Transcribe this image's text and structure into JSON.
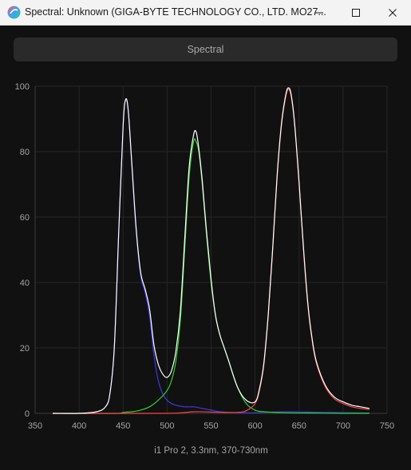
{
  "window": {
    "title": "Spectral: Unknown (GIGA-BYTE TECHNOLOGY CO., LTD. MO27...",
    "app_icon": "colorimeter-app-icon",
    "controls": [
      "minimize-icon",
      "maximize-icon",
      "close-icon"
    ]
  },
  "toolbar": {
    "spectral_label": "Spectral"
  },
  "chart_data": {
    "type": "line",
    "title": "",
    "xlabel": "i1 Pro 2, 3.3nm, 370-730nm",
    "ylabel": "",
    "xlim": [
      350,
      750
    ],
    "ylim": [
      0,
      100
    ],
    "x_ticks": [
      350,
      400,
      450,
      500,
      550,
      600,
      650,
      700,
      750
    ],
    "y_ticks": [
      0,
      20,
      40,
      60,
      80,
      100
    ],
    "grid": true,
    "legend": "none",
    "series": [
      {
        "color": "#3a3ae6",
        "x": [
          370,
          400,
          420,
          430,
          435,
          440,
          445,
          450,
          453,
          456,
          460,
          465,
          470,
          475,
          480,
          485,
          490,
          495,
          500,
          505,
          510,
          520,
          530,
          540,
          550,
          560,
          580,
          600,
          620,
          640,
          660,
          680,
          700,
          730
        ],
        "y": [
          0,
          0,
          0.5,
          2,
          6,
          20,
          55,
          88,
          96,
          92,
          75,
          55,
          42,
          37,
          30,
          18,
          10,
          6,
          4,
          3,
          2.5,
          2,
          2,
          1.5,
          1,
          0.5,
          0.2,
          0.2,
          0.4,
          0.5,
          0.4,
          0.3,
          0.2,
          0.1
        ]
      },
      {
        "color": "#2fd42f",
        "x": [
          370,
          440,
          450,
          460,
          470,
          480,
          490,
          500,
          505,
          510,
          515,
          520,
          525,
          530,
          533,
          536,
          540,
          545,
          550,
          555,
          560,
          565,
          570,
          580,
          590,
          600,
          610,
          630,
          660,
          700,
          730
        ],
        "y": [
          0,
          0,
          0.3,
          0.5,
          1,
          2,
          4,
          7,
          10,
          16,
          28,
          50,
          72,
          83,
          83,
          80,
          70,
          54,
          40,
          30,
          24,
          20,
          16,
          8,
          3,
          1,
          0.5,
          0.2,
          0.1,
          0,
          0
        ]
      },
      {
        "color": "#ff4444",
        "x": [
          370,
          500,
          530,
          560,
          580,
          590,
          600,
          605,
          610,
          615,
          620,
          625,
          630,
          635,
          638,
          641,
          645,
          650,
          655,
          660,
          665,
          670,
          680,
          690,
          700,
          710,
          720,
          730
        ],
        "y": [
          0,
          0,
          0.5,
          0.3,
          0.3,
          0.8,
          3,
          7,
          15,
          30,
          50,
          72,
          88,
          97,
          99,
          97,
          88,
          70,
          50,
          33,
          22,
          15,
          8,
          4.5,
          3,
          2,
          1.5,
          1.2
        ]
      },
      {
        "color": "#ffffff",
        "x": [
          370,
          400,
          420,
          430,
          435,
          440,
          445,
          450,
          453,
          456,
          460,
          465,
          470,
          475,
          480,
          485,
          490,
          495,
          500,
          505,
          510,
          515,
          520,
          525,
          530,
          533,
          536,
          540,
          545,
          550,
          555,
          560,
          565,
          570,
          580,
          590,
          600,
          605,
          610,
          615,
          620,
          625,
          630,
          635,
          638,
          641,
          645,
          650,
          655,
          660,
          665,
          670,
          680,
          690,
          700,
          710,
          720,
          730
        ],
        "y": [
          0,
          0,
          0.5,
          2,
          6,
          20,
          55,
          88,
          96,
          92,
          76,
          56,
          43,
          38,
          32,
          21,
          15,
          12,
          11,
          13,
          19,
          31,
          53,
          75,
          85,
          86,
          81,
          71,
          55,
          41,
          30,
          24,
          20,
          16,
          8,
          4,
          3.5,
          7.5,
          15.5,
          30.5,
          50.5,
          72.5,
          88.5,
          97.5,
          99.5,
          97.5,
          88.5,
          70.5,
          50.5,
          33.5,
          22.5,
          15.5,
          8.5,
          5,
          3.5,
          2.5,
          2,
          1.5
        ]
      }
    ]
  }
}
